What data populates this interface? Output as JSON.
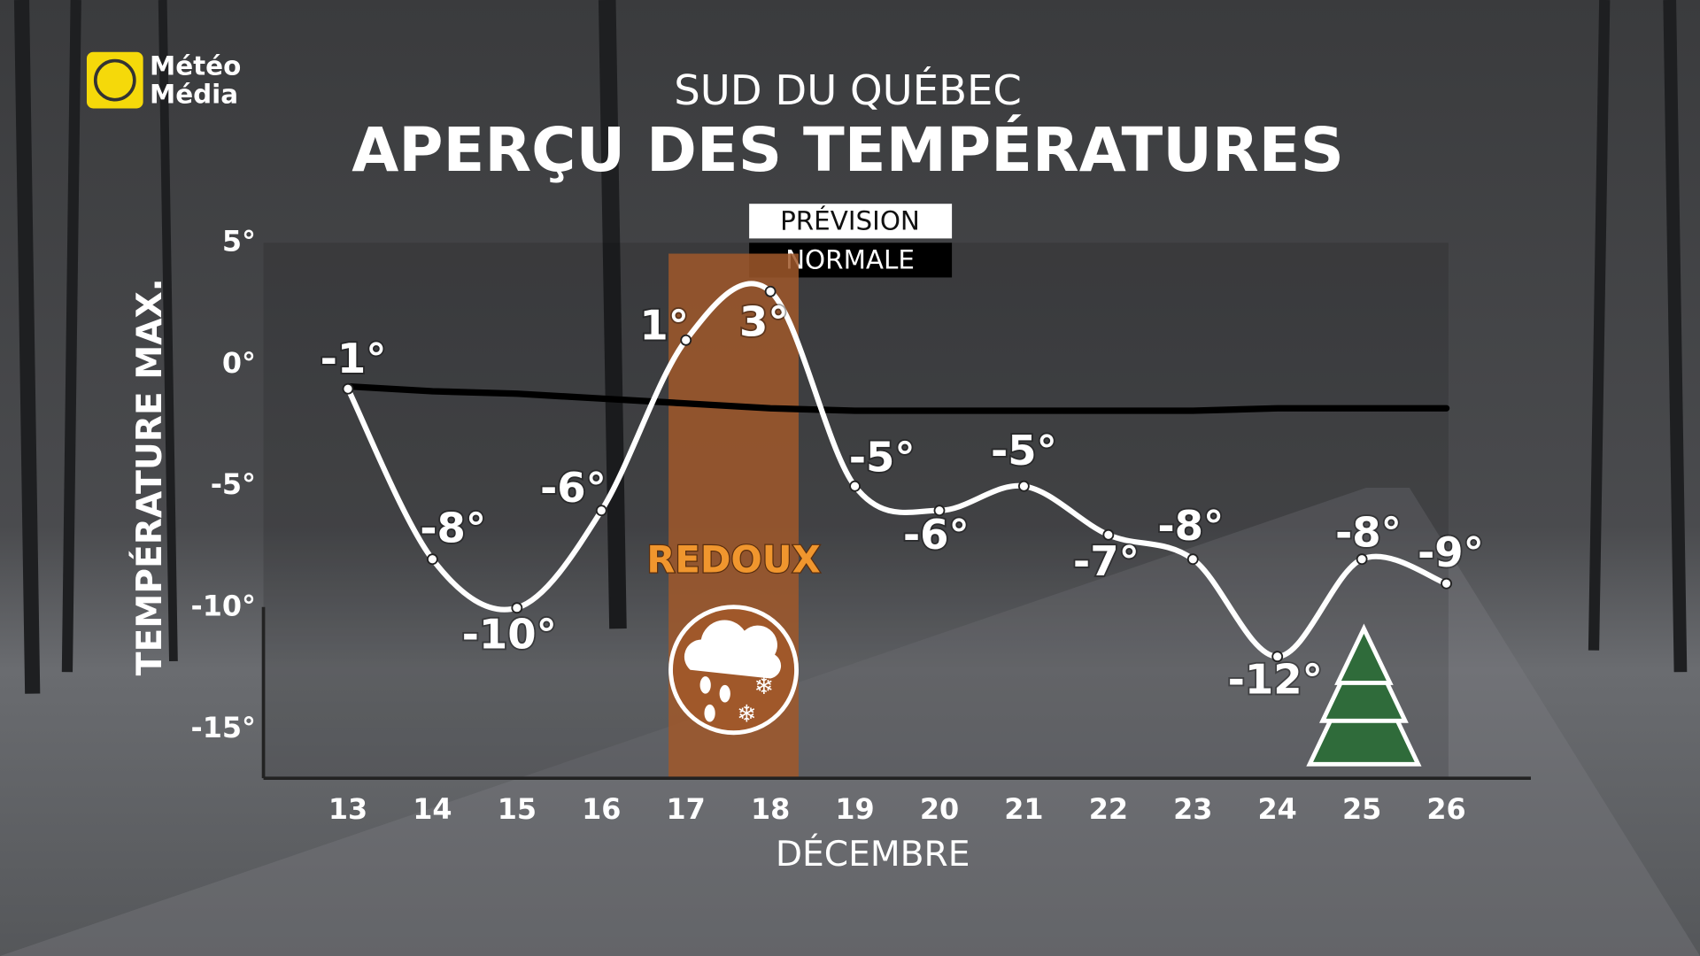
{
  "logo": {
    "line1": "Météo",
    "line2": "Média"
  },
  "chart_data": {
    "type": "line",
    "supertitle": "SUD DU QUÉBEC",
    "title": "APERÇU DES TEMPÉRATURES",
    "x_label": "DÉCEMBRE",
    "y_label": "TEMPÉRATURE MAX.",
    "x": [
      13,
      14,
      15,
      16,
      17,
      18,
      19,
      20,
      21,
      22,
      23,
      24,
      25,
      26
    ],
    "xlim": [
      12,
      27
    ],
    "xticks": [
      13,
      14,
      15,
      16,
      17,
      18,
      19,
      20,
      21,
      22,
      23,
      24,
      25,
      26
    ],
    "ylim": [
      -17,
      5
    ],
    "yticks": [
      {
        "value": 5,
        "label": "5°"
      },
      {
        "value": 0,
        "label": "0°"
      },
      {
        "value": -5,
        "label": "-5°"
      },
      {
        "value": -10,
        "label": "-10°"
      },
      {
        "value": -15,
        "label": "-15°"
      }
    ],
    "series": [
      {
        "name": "PRÉVISION",
        "color": "#ffffff",
        "values": [
          -1,
          -8,
          -10,
          -6,
          1,
          3,
          -5,
          -6,
          -5,
          -7,
          -8,
          -12,
          -8,
          -9
        ],
        "value_labels": [
          "-1°",
          "-8°",
          "-10°",
          "-6°",
          "1°",
          "3°",
          "-5°",
          "-6°",
          "-5°",
          "-7°",
          "-8°",
          "-12°",
          "-8°",
          "-9°"
        ]
      },
      {
        "name": "NORMALE",
        "color": "#000000",
        "values": [
          -0.9,
          -1.1,
          -1.2,
          -1.4,
          -1.6,
          -1.8,
          -1.9,
          -1.9,
          -1.9,
          -1.9,
          -1.9,
          -1.8,
          -1.8,
          -1.8
        ]
      }
    ],
    "annotations": [
      {
        "text": "REDOUX",
        "x": [
          17,
          18
        ],
        "color": "#a0582a"
      }
    ]
  }
}
